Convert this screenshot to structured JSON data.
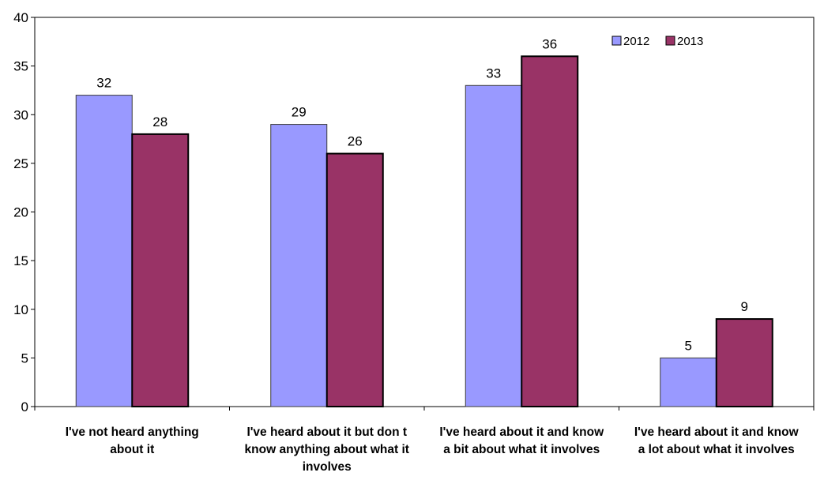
{
  "chart_data": {
    "type": "bar",
    "categories": [
      [
        "I've not heard anything",
        "about it"
      ],
      [
        "I've heard about it but don t",
        "know anything about what it",
        "involves"
      ],
      [
        "I've heard about it and know",
        "a bit about what it involves"
      ],
      [
        "I've heard about it and know",
        "a lot about what it involves"
      ]
    ],
    "series": [
      {
        "name": "2012",
        "values": [
          32,
          29,
          33,
          5
        ],
        "color": "#9999ff"
      },
      {
        "name": "2013",
        "values": [
          28,
          26,
          36,
          9
        ],
        "color": "#993366"
      }
    ],
    "ylim": [
      0,
      40
    ],
    "yticks": [
      "0",
      "5",
      "10",
      "15",
      "20",
      "25",
      "30",
      "35",
      "40"
    ],
    "title": "",
    "xlabel": "",
    "ylabel": "",
    "grid": false,
    "legend_position": "top-right"
  }
}
